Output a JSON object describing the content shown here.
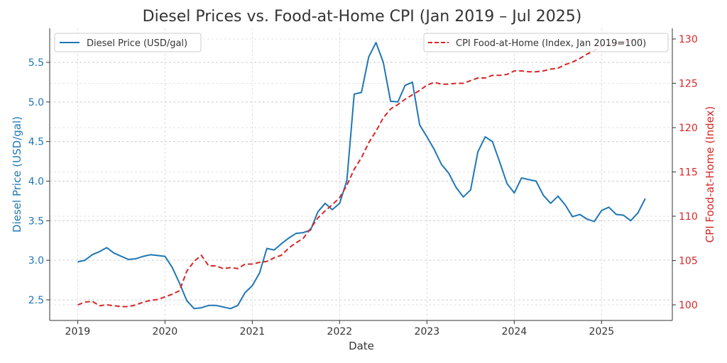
{
  "chart_data": {
    "type": "line",
    "title": "Diesel Prices vs. Food-at-Home CPI (Jan 2019 – Jul 2025)",
    "xlabel": "Date",
    "xlim": [
      2018.68,
      2025.81
    ],
    "xticks": [
      2019,
      2020,
      2021,
      2022,
      2023,
      2024,
      2025
    ],
    "xtick_labels": [
      "2019",
      "2020",
      "2021",
      "2022",
      "2023",
      "2024",
      "2025"
    ],
    "grid": true,
    "start": {
      "year": 2019,
      "month": 1
    },
    "left_axis": {
      "label": "Diesel Price (USD/gal)",
      "color": "#1f77b4",
      "ylim": [
        2.24,
        5.93
      ],
      "ticks": [
        2.5,
        3.0,
        3.5,
        4.0,
        4.5,
        5.0,
        5.5
      ],
      "tick_labels": [
        "2.5",
        "3.0",
        "3.5",
        "4.0",
        "4.5",
        "5.0",
        "5.5"
      ]
    },
    "right_axis": {
      "label": "CPI Food-at-Home (Index)",
      "color": "#d62728",
      "ylim": [
        98.24,
        131.2
      ],
      "ticks": [
        100,
        105,
        110,
        115,
        120,
        125,
        130
      ],
      "tick_labels": [
        "100",
        "105",
        "110",
        "115",
        "120",
        "125",
        "130"
      ]
    },
    "series": [
      {
        "name": "Diesel Price (USD/gal)",
        "axis": "left",
        "color": "#1f77b4",
        "style": "solid",
        "legend": "top-left",
        "values": [
          2.98,
          3.0,
          3.07,
          3.11,
          3.16,
          3.09,
          3.05,
          3.01,
          3.02,
          3.05,
          3.07,
          3.06,
          3.05,
          2.91,
          2.71,
          2.49,
          2.39,
          2.4,
          2.43,
          2.43,
          2.41,
          2.39,
          2.43,
          2.59,
          2.68,
          2.84,
          3.15,
          3.13,
          3.21,
          3.28,
          3.34,
          3.35,
          3.38,
          3.61,
          3.72,
          3.64,
          3.72,
          4.01,
          5.1,
          5.12,
          5.57,
          5.75,
          5.5,
          5.01,
          5.0,
          5.21,
          5.25,
          4.71,
          4.56,
          4.4,
          4.21,
          4.1,
          3.92,
          3.8,
          3.89,
          4.37,
          4.56,
          4.5,
          4.24,
          3.97,
          3.85,
          4.04,
          4.02,
          4.0,
          3.82,
          3.72,
          3.81,
          3.7,
          3.55,
          3.58,
          3.52,
          3.49,
          3.63,
          3.67,
          3.58,
          3.57,
          3.5,
          3.6,
          3.78
        ]
      },
      {
        "name": "CPI Food-at-Home (Index, Jan 2019=100)",
        "axis": "right",
        "color": "#d62728",
        "style": "dashed",
        "legend": "top-right",
        "values": [
          100.0,
          100.3,
          100.4,
          99.9,
          100.0,
          99.9,
          99.8,
          99.8,
          100.0,
          100.3,
          100.5,
          100.6,
          100.9,
          101.2,
          101.6,
          103.8,
          104.9,
          105.6,
          104.4,
          104.4,
          104.1,
          104.2,
          104.1,
          104.6,
          104.6,
          104.8,
          104.9,
          105.3,
          105.6,
          106.4,
          107.0,
          107.5,
          108.6,
          109.8,
          110.6,
          111.3,
          112.1,
          113.5,
          115.3,
          116.6,
          118.3,
          119.6,
          121.1,
          122.1,
          122.6,
          123.2,
          123.7,
          124.2,
          124.8,
          125.1,
          124.9,
          124.9,
          125.0,
          125.0,
          125.3,
          125.6,
          125.6,
          125.9,
          125.9,
          126.0,
          126.4,
          126.4,
          126.3,
          126.3,
          126.4,
          126.6,
          126.7,
          127.1,
          127.4,
          127.8,
          128.3,
          128.7,
          129.2,
          129.4,
          129.5,
          129.6,
          129.8,
          129.9,
          130.1
        ]
      }
    ]
  }
}
